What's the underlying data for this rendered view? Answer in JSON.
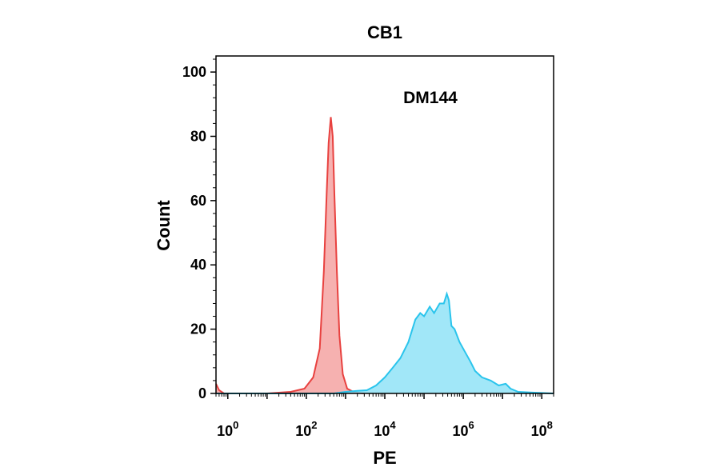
{
  "chart_data": {
    "type": "area",
    "title": "CB1",
    "xlabel": "PE",
    "ylabel": "Count",
    "x_scale": "log",
    "xlim": [
      0.5,
      200000000
    ],
    "ylim": [
      0,
      105
    ],
    "x_ticks": [
      {
        "value": 1,
        "base": "10",
        "exp": "0"
      },
      {
        "value": 100,
        "base": "10",
        "exp": "2"
      },
      {
        "value": 10000,
        "base": "10",
        "exp": "4"
      },
      {
        "value": 1000000,
        "base": "10",
        "exp": "6"
      },
      {
        "value": 100000000,
        "base": "10",
        "exp": "8"
      }
    ],
    "y_ticks": [
      0,
      20,
      40,
      60,
      80,
      100
    ],
    "grid": false,
    "annotations": [
      {
        "text": "DM144"
      }
    ],
    "series": [
      {
        "color": "#e8413f",
        "fill": "#f5a3a2",
        "points": [
          [
            0.5,
            3
          ],
          [
            0.6,
            1
          ],
          [
            0.8,
            0
          ],
          [
            10,
            0
          ],
          [
            40,
            0.5
          ],
          [
            90,
            1.5
          ],
          [
            150,
            5
          ],
          [
            220,
            14
          ],
          [
            280,
            38
          ],
          [
            330,
            62
          ],
          [
            370,
            78
          ],
          [
            420,
            86
          ],
          [
            470,
            80
          ],
          [
            520,
            62
          ],
          [
            600,
            38
          ],
          [
            700,
            18
          ],
          [
            850,
            6
          ],
          [
            1100,
            1.5
          ],
          [
            1700,
            0.3
          ],
          [
            3000,
            0
          ]
        ]
      },
      {
        "color": "#2ac4ec",
        "fill": "#90e3f7",
        "points": [
          [
            0.5,
            0
          ],
          [
            500,
            0
          ],
          [
            1000,
            0.5
          ],
          [
            2000,
            0.8
          ],
          [
            3500,
            1
          ],
          [
            6000,
            2.5
          ],
          [
            10000,
            5
          ],
          [
            16000,
            8
          ],
          [
            25000,
            11
          ],
          [
            40000,
            16
          ],
          [
            60000,
            23
          ],
          [
            80000,
            25
          ],
          [
            100000,
            24
          ],
          [
            140000,
            27
          ],
          [
            180000,
            25
          ],
          [
            250000,
            28
          ],
          [
            320000,
            28
          ],
          [
            380000,
            31
          ],
          [
            430000,
            29
          ],
          [
            500000,
            21
          ],
          [
            600000,
            20
          ],
          [
            800000,
            16
          ],
          [
            1100000,
            13
          ],
          [
            1500000,
            10
          ],
          [
            2000000,
            7
          ],
          [
            3000000,
            5
          ],
          [
            5000000,
            4
          ],
          [
            8000000,
            2.5
          ],
          [
            12000000,
            3
          ],
          [
            16000000,
            1.5
          ],
          [
            25000000,
            0.5
          ],
          [
            50000000,
            0.3
          ],
          [
            200000000,
            0
          ]
        ]
      }
    ]
  }
}
